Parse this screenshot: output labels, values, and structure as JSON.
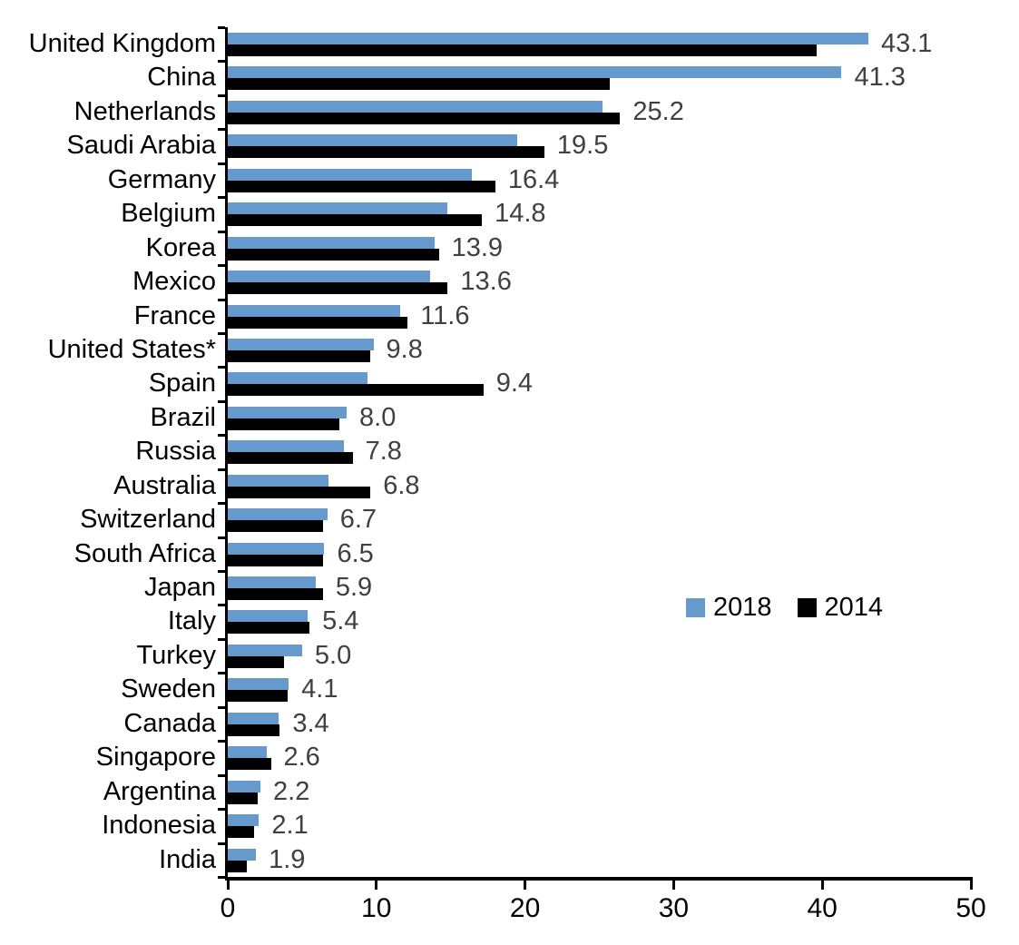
{
  "chart_data": {
    "type": "bar",
    "orientation": "horizontal",
    "title": "",
    "xlabel": "",
    "ylabel": "",
    "xlim": [
      0,
      50
    ],
    "x_ticks": [
      "0",
      "10",
      "20",
      "30",
      "40",
      "50"
    ],
    "grid": false,
    "legend_position": "middle-right",
    "categories": [
      "United Kingdom",
      "China",
      "Netherlands",
      "Saudi Arabia",
      "Germany",
      "Belgium",
      "Korea",
      "Mexico",
      "France",
      "United States*",
      "Spain",
      "Brazil",
      "Russia",
      "Australia",
      "Switzerland",
      "South Africa",
      "Japan",
      "Italy",
      "Turkey",
      "Sweden",
      "Canada",
      "Singapore",
      "Argentina",
      "Indonesia",
      "India"
    ],
    "series": [
      {
        "name": "2018",
        "color": "#6699CC",
        "values": [
          43.1,
          41.3,
          25.2,
          19.5,
          16.4,
          14.8,
          13.9,
          13.6,
          11.6,
          9.8,
          9.4,
          8.0,
          7.8,
          6.8,
          6.7,
          6.5,
          5.9,
          5.4,
          5.0,
          4.1,
          3.4,
          2.6,
          2.2,
          2.1,
          1.9
        ]
      },
      {
        "name": "2014",
        "color": "#000000",
        "values": [
          39.6,
          25.7,
          26.4,
          21.3,
          18.0,
          17.1,
          14.2,
          14.8,
          12.1,
          9.6,
          17.2,
          7.5,
          8.4,
          9.6,
          6.4,
          6.4,
          6.4,
          5.5,
          3.8,
          4.0,
          3.5,
          2.9,
          2.0,
          1.8,
          1.3
        ]
      }
    ],
    "data_labels": {
      "series": "2018",
      "color": "#404040",
      "values": [
        "43.1",
        "41.3",
        "25.2",
        "19.5",
        "16.4",
        "14.8",
        "13.9",
        "13.6",
        "11.6",
        "9.8",
        "9.4",
        "8.0",
        "7.8",
        "6.8",
        "6.7",
        "6.5",
        "5.9",
        "5.4",
        "5.0",
        "4.1",
        "3.4",
        "2.6",
        "2.2",
        "2.1",
        "1.9"
      ]
    }
  },
  "legend": {
    "entries": [
      {
        "label": "2018",
        "color": "#6699CC"
      },
      {
        "label": "2014",
        "color": "#000000"
      }
    ]
  }
}
